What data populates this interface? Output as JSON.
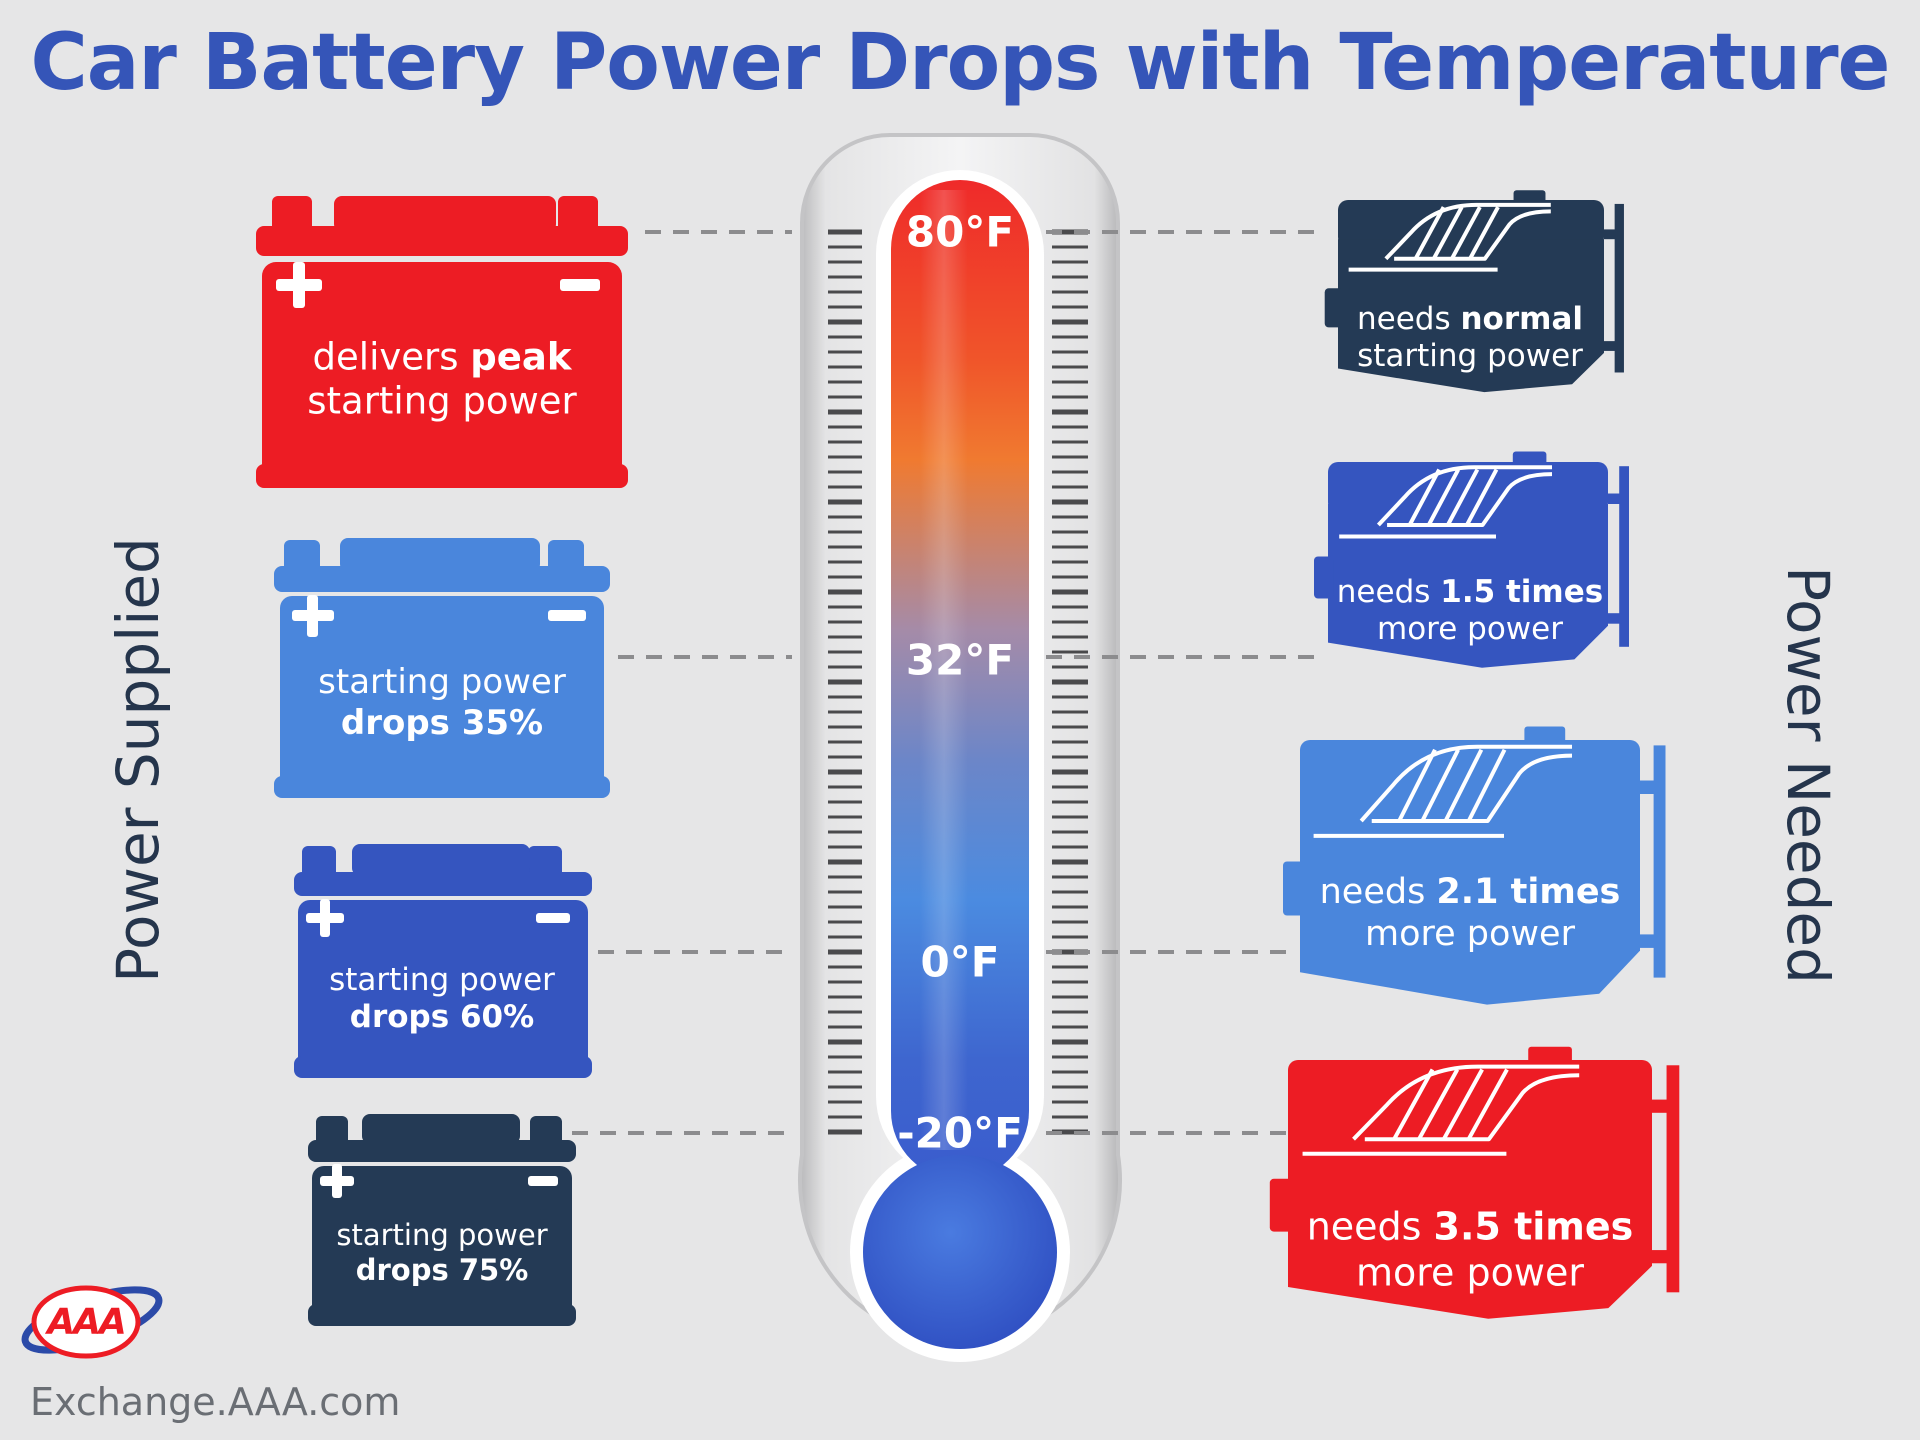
{
  "title": "Car Battery Power Drops with Temperature",
  "left_axis_label": "Power Supplied",
  "right_axis_label": "Power Needed",
  "footer_url": "Exchange.AAA.com",
  "logo_text": "AAA",
  "colors": {
    "red": "#ed1c24",
    "light_blue": "#4a86dc",
    "medium_blue": "#3555bf",
    "navy": "#243a55",
    "title": "#3555b8"
  },
  "temperatures": [
    "80°F",
    "32°F",
    "0°F",
    "-20°F"
  ],
  "batteries": [
    {
      "line1": "delivers ",
      "line1_bold": "peak",
      "line2": "starting power",
      "line2_bold": ""
    },
    {
      "line1": "starting power",
      "line1_bold": "",
      "line2": "",
      "line2_bold": "drops 35%"
    },
    {
      "line1": "starting power",
      "line1_bold": "",
      "line2": "",
      "line2_bold": "drops 60%"
    },
    {
      "line1": "starting power",
      "line1_bold": "",
      "line2": "",
      "line2_bold": "drops 75%"
    }
  ],
  "engines": [
    {
      "line1": "needs ",
      "line1_bold": "normal",
      "line2": "starting power"
    },
    {
      "line1": "needs ",
      "line1_bold": "1.5 times",
      "line2": "more power"
    },
    {
      "line1": "needs ",
      "line1_bold": "2.1 times",
      "line2": "more power"
    },
    {
      "line1": "needs ",
      "line1_bold": "3.5 times",
      "line2": "more power"
    }
  ]
}
